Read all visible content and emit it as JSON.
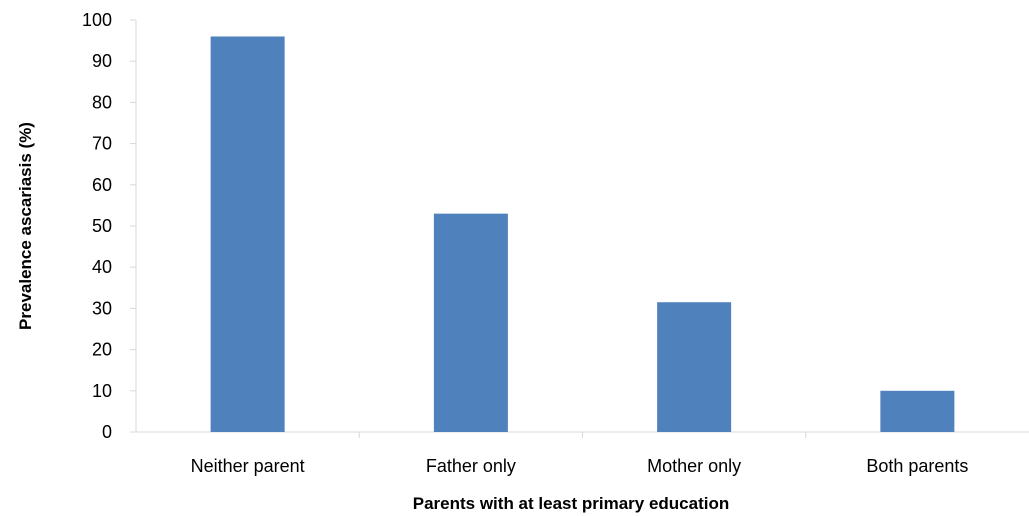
{
  "chart_data": {
    "type": "bar",
    "categories": [
      "Neither parent",
      "Father only",
      "Mother only",
      "Both parents"
    ],
    "values": [
      96,
      53,
      31.5,
      10
    ],
    "xlabel": "Parents with at least primary education",
    "ylabel": "Prevalence  ascariasis (%)",
    "ylim": [
      0,
      100
    ],
    "yticks": [
      0,
      10,
      20,
      30,
      40,
      50,
      60,
      70,
      80,
      90,
      100
    ],
    "grid": false,
    "legend": "none",
    "bar_color": "#4f81bd"
  }
}
